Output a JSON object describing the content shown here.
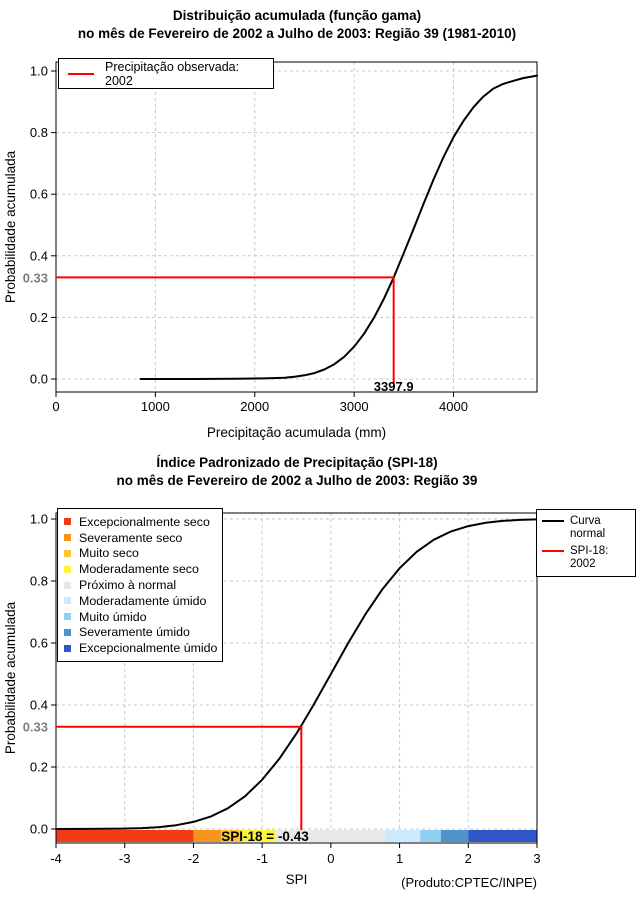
{
  "styles": {
    "curve_color": "#000000",
    "marker_color": "#ff0000",
    "grid_color": "#c8c8c8",
    "muted_label_color": "#7d7d7d",
    "legend_border_color": "#000000"
  },
  "chart_data": [
    {
      "type": "line",
      "title": "Distribuição acumulada (função gama)",
      "subtitle": "no mês de Fevereiro de 2002 a Julho de 2003: Região 39 (1981-2010)",
      "xlabel": "Precipitação acumulada (mm)",
      "ylabel": "Probabilidade acumulada",
      "xlim": [
        0,
        4840
      ],
      "ylim": [
        0,
        1
      ],
      "grid": true,
      "x_ticks": [
        0,
        1000,
        2000,
        3000,
        4000
      ],
      "x_tick_labels": [
        "0",
        "1000",
        "2000",
        "3000",
        "4000"
      ],
      "y_ticks": [
        0,
        0.2,
        0.4,
        0.6,
        0.8,
        1.0
      ],
      "y_tick_labels": [
        "0.0",
        "0.2",
        "0.4",
        "0.6",
        "0.8",
        "1.0"
      ],
      "legend_position": "top-left",
      "legend_label": "Precipitação observada: 2002",
      "marker": {
        "x": 3397.9,
        "p": 0.33,
        "x_label": "3397.9",
        "p_label": "0.33"
      },
      "series": [
        {
          "name": "Distribuição acumulada (função gama)",
          "color": "#000000",
          "x": [
            850,
            1400,
            1800,
            2100,
            2300,
            2400,
            2500,
            2600,
            2700,
            2800,
            2900,
            3000,
            3100,
            3200,
            3300,
            3397.9,
            3500,
            3600,
            3700,
            3800,
            3900,
            4000,
            4100,
            4200,
            4300,
            4400,
            4500,
            4600,
            4700,
            4840
          ],
          "y": [
            0,
            0,
            0.001,
            0.002,
            0.004,
            0.007,
            0.012,
            0.019,
            0.031,
            0.048,
            0.072,
            0.105,
            0.147,
            0.199,
            0.261,
            0.33,
            0.409,
            0.489,
            0.57,
            0.648,
            0.721,
            0.785,
            0.838,
            0.882,
            0.917,
            0.943,
            0.958,
            0.968,
            0.977,
            0.985
          ]
        }
      ]
    },
    {
      "type": "line",
      "title": "Índice Padronizado de Precipitação (SPI-18)",
      "subtitle": "no mês de Fevereiro de 2002 a Julho de 2003: Região 39",
      "xlabel": "SPI",
      "ylabel": "Probabilidade acumulada",
      "footer": "(Produto:CPTEC/INPE)",
      "xlim": [
        -4,
        3
      ],
      "ylim": [
        0,
        1
      ],
      "grid": true,
      "x_ticks": [
        -4,
        -3,
        -2,
        -1,
        0,
        1,
        2,
        3
      ],
      "x_tick_labels": [
        "-4",
        "-3",
        "-2",
        "-1",
        "0",
        "1",
        "2",
        "3"
      ],
      "y_ticks": [
        0,
        0.2,
        0.4,
        0.6,
        0.8,
        1.0
      ],
      "y_tick_labels": [
        "0.0",
        "0.2",
        "0.4",
        "0.6",
        "0.8",
        "1.0"
      ],
      "legend_categories": [
        {
          "label": "Excepcionalmente seco",
          "color": "#f03b14"
        },
        {
          "label": "Severamente seco",
          "color": "#f7941e"
        },
        {
          "label": "Muito seco",
          "color": "#fdc438"
        },
        {
          "label": "Moderadamente seco",
          "color": "#fdf53c"
        },
        {
          "label": "Próximo à normal",
          "color": "#e8e8e8"
        },
        {
          "label": "Moderadamente úmido",
          "color": "#cdeafc"
        },
        {
          "label": "Muito úmido",
          "color": "#8fd0f2"
        },
        {
          "label": "Severamente úmido",
          "color": "#4d94ca"
        },
        {
          "label": "Excepcionalmente úmido",
          "color": "#2f55c6"
        }
      ],
      "legend_lines": [
        {
          "label": "Curva normal",
          "color": "#000000"
        },
        {
          "label": "SPI-18: 2002",
          "color": "#ff0000"
        }
      ],
      "marker": {
        "x": -0.43,
        "p": 0.33,
        "annotation": "SPI-18 = -0.43",
        "p_label": "0.33"
      },
      "colorbar": {
        "boundaries": [
          -4,
          -2,
          -1.6,
          -1.3,
          -0.8,
          0.8,
          1.3,
          1.6,
          2,
          3
        ],
        "colors": [
          "#f03b14",
          "#f7941e",
          "#fdc438",
          "#fdf53c",
          "#e8e8e8",
          "#cdeafc",
          "#8fd0f2",
          "#4d94ca",
          "#2f55c6"
        ]
      },
      "series": [
        {
          "name": "Curva normal",
          "color": "#000000",
          "x": [
            -4,
            -3.5,
            -3,
            -2.75,
            -2.5,
            -2.25,
            -2,
            -1.75,
            -1.5,
            -1.25,
            -1,
            -0.75,
            -0.5,
            -0.43,
            -0.25,
            0,
            0.25,
            0.5,
            0.75,
            1,
            1.25,
            1.5,
            1.75,
            2,
            2.25,
            2.5,
            2.75,
            3
          ],
          "y": [
            0.0,
            0.0002,
            0.0013,
            0.003,
            0.0062,
            0.0122,
            0.0228,
            0.0401,
            0.0668,
            0.1056,
            0.1587,
            0.2266,
            0.3085,
            0.3336,
            0.4013,
            0.5,
            0.5987,
            0.6915,
            0.7734,
            0.8413,
            0.8944,
            0.9332,
            0.9599,
            0.9772,
            0.9878,
            0.9938,
            0.997,
            0.9987
          ]
        }
      ]
    }
  ]
}
